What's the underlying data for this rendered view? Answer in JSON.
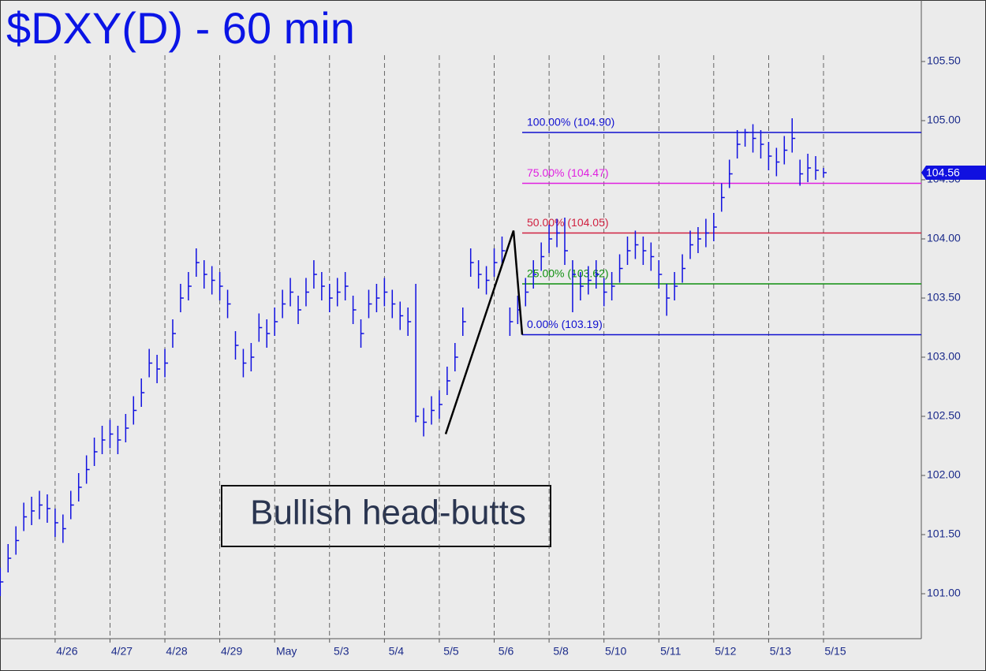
{
  "chart_data": {
    "type": "ohlc",
    "title": "$DXY(D) - 60 min",
    "annotation": "Bullish head-butts",
    "color": "#1010e0",
    "ylim": [
      100.62,
      106.02
    ],
    "yticks": [
      {
        "value": 101,
        "label": "101.00"
      },
      {
        "value": 101.5,
        "label": "101.50"
      },
      {
        "value": 102,
        "label": "102.00"
      },
      {
        "value": 102.5,
        "label": "102.50"
      },
      {
        "value": 103,
        "label": "103.00"
      },
      {
        "value": 103.5,
        "label": "103.50"
      },
      {
        "value": 104,
        "label": "104.00"
      },
      {
        "value": 104.5,
        "label": "104.50"
      },
      {
        "value": 105,
        "label": "105.00"
      },
      {
        "value": 105.5,
        "label": "105.50"
      }
    ],
    "last_value": 104.56,
    "categories": [
      null,
      null,
      null,
      null,
      null,
      null,
      null,
      "4/26",
      null,
      null,
      null,
      null,
      null,
      null,
      "4/27",
      null,
      null,
      null,
      null,
      null,
      null,
      "4/28",
      null,
      null,
      null,
      null,
      null,
      null,
      "4/29",
      null,
      null,
      null,
      null,
      null,
      null,
      "May",
      null,
      null,
      null,
      null,
      null,
      null,
      "5/3",
      null,
      null,
      null,
      null,
      null,
      null,
      "5/4",
      null,
      null,
      null,
      null,
      null,
      null,
      "5/5",
      null,
      null,
      null,
      null,
      null,
      null,
      "5/6",
      null,
      null,
      null,
      null,
      null,
      null,
      "5/8",
      null,
      null,
      null,
      null,
      null,
      null,
      "5/10",
      null,
      null,
      null,
      null,
      null,
      null,
      "5/11",
      null,
      null,
      null,
      null,
      null,
      null,
      "5/12",
      null,
      null,
      null,
      null,
      null,
      null,
      "5/13",
      null,
      null,
      null,
      null,
      null,
      null,
      "5/15"
    ],
    "high": [
      101.22,
      101.42,
      101.57,
      101.77,
      101.82,
      101.87,
      101.84,
      101.72,
      101.67,
      101.87,
      102.02,
      102.17,
      102.32,
      102.42,
      102.47,
      102.42,
      102.52,
      102.67,
      102.82,
      103.07,
      103.02,
      103.07,
      103.32,
      103.62,
      103.72,
      103.92,
      103.82,
      103.77,
      103.72,
      103.57,
      103.22,
      103.07,
      103.12,
      103.37,
      103.32,
      103.42,
      103.57,
      103.67,
      103.52,
      103.67,
      103.82,
      103.72,
      103.62,
      103.67,
      103.72,
      103.52,
      103.32,
      103.57,
      103.62,
      103.67,
      103.57,
      103.47,
      103.42,
      103.62,
      102.57,
      102.67,
      102.72,
      102.92,
      103.12,
      103.42,
      103.92,
      103.82,
      103.77,
      103.92,
      104.02,
      103.42,
      103.52,
      103.67,
      103.82,
      103.97,
      104.12,
      104.17,
      104.18,
      103.82,
      103.72,
      103.77,
      103.82,
      103.67,
      103.72,
      103.87,
      104.02,
      104.07,
      104.02,
      103.97,
      103.82,
      103.62,
      103.72,
      103.87,
      104.07,
      104.1,
      104.17,
      104.22,
      104.47,
      104.67,
      104.92,
      104.93,
      104.97,
      104.92,
      104.82,
      104.77,
      104.87,
      105.02,
      104.67,
      104.72,
      104.7,
      104.6
    ],
    "low": [
      100.98,
      101.18,
      101.33,
      101.53,
      101.58,
      101.63,
      101.6,
      101.48,
      101.43,
      101.63,
      101.78,
      101.93,
      102.08,
      102.18,
      102.23,
      102.18,
      102.28,
      102.43,
      102.58,
      102.83,
      102.78,
      102.83,
      103.08,
      103.38,
      103.48,
      103.68,
      103.58,
      103.53,
      103.48,
      103.33,
      102.98,
      102.83,
      102.88,
      103.13,
      103.08,
      103.18,
      103.33,
      103.43,
      103.28,
      103.43,
      103.58,
      103.48,
      103.38,
      103.43,
      103.48,
      103.28,
      103.08,
      103.33,
      103.38,
      103.43,
      103.33,
      103.23,
      103.18,
      102.45,
      102.33,
      102.43,
      102.48,
      102.68,
      102.88,
      103.18,
      103.68,
      103.58,
      103.53,
      103.68,
      103.78,
      103.18,
      103.28,
      103.43,
      103.58,
      103.73,
      103.88,
      103.93,
      103.78,
      103.38,
      103.48,
      103.53,
      103.58,
      103.43,
      103.48,
      103.63,
      103.78,
      103.83,
      103.78,
      103.73,
      103.58,
      103.35,
      103.48,
      103.63,
      103.83,
      103.88,
      103.93,
      103.98,
      104.23,
      104.43,
      104.68,
      104.78,
      104.73,
      104.68,
      104.58,
      104.53,
      104.63,
      104.73,
      104.45,
      104.48,
      104.5,
      104.52
    ],
    "close": [
      101.1,
      101.3,
      101.45,
      101.65,
      101.7,
      101.75,
      101.72,
      101.6,
      101.55,
      101.75,
      101.9,
      102.05,
      102.2,
      102.3,
      102.35,
      102.3,
      102.4,
      102.55,
      102.7,
      102.95,
      102.9,
      102.95,
      103.2,
      103.5,
      103.6,
      103.8,
      103.7,
      103.65,
      103.6,
      103.45,
      103.1,
      102.95,
      103.0,
      103.25,
      103.2,
      103.3,
      103.45,
      103.55,
      103.4,
      103.55,
      103.7,
      103.6,
      103.5,
      103.55,
      103.6,
      103.4,
      103.2,
      103.45,
      103.5,
      103.55,
      103.45,
      103.35,
      103.3,
      102.5,
      102.45,
      102.55,
      102.6,
      102.8,
      103.0,
      103.3,
      103.8,
      103.7,
      103.65,
      103.8,
      103.9,
      103.3,
      103.4,
      103.55,
      103.7,
      103.85,
      104.0,
      104.05,
      103.9,
      103.7,
      103.6,
      103.65,
      103.7,
      103.55,
      103.6,
      103.75,
      103.9,
      103.95,
      103.9,
      103.85,
      103.7,
      103.5,
      103.6,
      103.75,
      103.95,
      104.0,
      104.05,
      104.1,
      104.35,
      104.55,
      104.8,
      104.9,
      104.85,
      104.8,
      104.7,
      104.65,
      104.75,
      104.85,
      104.55,
      104.6,
      104.58,
      104.56
    ],
    "trend_line": [
      102.35,
      104.07,
      103.19
    ],
    "fib_levels": [
      {
        "label": "100.00% (104.90)",
        "value": 104.9,
        "color": "#1010d0"
      },
      {
        "label": "75.00% (104.47)",
        "value": 104.47,
        "color": "#e020e0"
      },
      {
        "label": "50.00% (104.05)",
        "value": 104.05,
        "color": "#d02040"
      },
      {
        "label": "25.00% (103.62)",
        "value": 103.62,
        "color": "#109010"
      },
      {
        "label": "0.00% (103.19)",
        "value": 103.19,
        "color": "#1010d0"
      }
    ]
  }
}
